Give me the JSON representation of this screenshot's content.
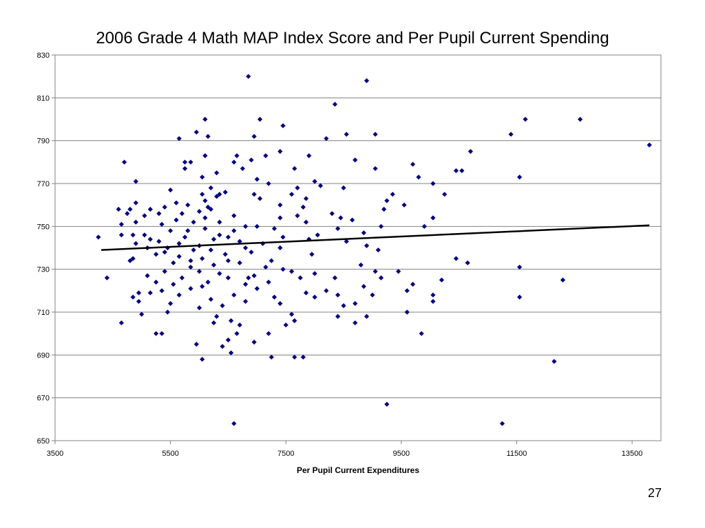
{
  "page": {
    "number": "27"
  },
  "chart_data": {
    "type": "scatter",
    "title": "2006 Grade 4 Math MAP Index Score and Per Pupil Current Spending",
    "xlabel": "Per Pupil Current Expenditures",
    "ylabel": "",
    "xlim": [
      3500,
      14000
    ],
    "ylim": [
      650,
      830
    ],
    "xticks": [
      3500,
      5500,
      7500,
      9500,
      11500,
      13500
    ],
    "yticks": [
      650,
      670,
      690,
      710,
      730,
      750,
      770,
      790,
      810,
      830
    ],
    "grid": "horizontal",
    "legend": "none",
    "colors": {
      "points": "#00007f",
      "trendline": "#000000",
      "gridline": "#808080",
      "axis": "#808080"
    },
    "series": [
      {
        "marker": "diamond",
        "points": [
          [
            6850,
            820
          ],
          [
            8900,
            818
          ],
          [
            8350,
            807
          ],
          [
            6100,
            800
          ],
          [
            7050,
            800
          ],
          [
            11650,
            800
          ],
          [
            12600,
            800
          ],
          [
            7450,
            797
          ],
          [
            5950,
            794
          ],
          [
            9050,
            793
          ],
          [
            11400,
            793
          ],
          [
            8550,
            793
          ],
          [
            6150,
            792
          ],
          [
            6950,
            792
          ],
          [
            8200,
            791
          ],
          [
            5650,
            791
          ],
          [
            13800,
            788
          ],
          [
            10700,
            785
          ],
          [
            7400,
            785
          ],
          [
            7900,
            783
          ],
          [
            6650,
            783
          ],
          [
            7150,
            783
          ],
          [
            6100,
            783
          ],
          [
            8700,
            781
          ],
          [
            6900,
            781
          ],
          [
            4700,
            780
          ],
          [
            5850,
            780
          ],
          [
            5750,
            780
          ],
          [
            6600,
            780
          ],
          [
            9700,
            779
          ],
          [
            9050,
            777
          ],
          [
            10450,
            776
          ],
          [
            10550,
            776
          ],
          [
            7650,
            777
          ],
          [
            5750,
            777
          ],
          [
            6750,
            777
          ],
          [
            6300,
            775
          ],
          [
            11550,
            773
          ],
          [
            9800,
            773
          ],
          [
            6050,
            773
          ],
          [
            7000,
            772
          ],
          [
            4900,
            771
          ],
          [
            8000,
            771
          ],
          [
            7700,
            768
          ],
          [
            8500,
            768
          ],
          [
            10050,
            770
          ],
          [
            7200,
            770
          ],
          [
            8100,
            769
          ],
          [
            6200,
            768
          ],
          [
            9350,
            765
          ],
          [
            10250,
            765
          ],
          [
            7600,
            765
          ],
          [
            6450,
            766
          ],
          [
            6350,
            765
          ],
          [
            6050,
            765
          ],
          [
            5500,
            767
          ],
          [
            6950,
            765
          ],
          [
            6300,
            764
          ],
          [
            7050,
            763
          ],
          [
            7850,
            763
          ],
          [
            6100,
            762
          ],
          [
            9250,
            762
          ],
          [
            5600,
            761
          ],
          [
            5800,
            760
          ],
          [
            4900,
            761
          ],
          [
            9550,
            760
          ],
          [
            6150,
            759
          ],
          [
            7400,
            760
          ],
          [
            7800,
            759
          ],
          [
            5400,
            759
          ],
          [
            4600,
            758
          ],
          [
            6200,
            758
          ],
          [
            4800,
            758
          ],
          [
            5150,
            758
          ],
          [
            9200,
            758
          ],
          [
            6000,
            757
          ],
          [
            5700,
            756
          ],
          [
            5300,
            756
          ],
          [
            8300,
            756
          ],
          [
            4750,
            756
          ],
          [
            7700,
            755
          ],
          [
            5050,
            755
          ],
          [
            8450,
            754
          ],
          [
            6600,
            755
          ],
          [
            6100,
            754
          ],
          [
            7400,
            754
          ],
          [
            5600,
            753
          ],
          [
            10050,
            754
          ],
          [
            8650,
            753
          ],
          [
            4900,
            752
          ],
          [
            5900,
            752
          ],
          [
            6350,
            752
          ],
          [
            7850,
            752
          ],
          [
            5350,
            751
          ],
          [
            4650,
            751
          ],
          [
            9150,
            750
          ],
          [
            6800,
            750
          ],
          [
            7000,
            750
          ],
          [
            9900,
            750
          ],
          [
            8400,
            749
          ],
          [
            6100,
            749
          ],
          [
            7300,
            749
          ],
          [
            5800,
            748
          ],
          [
            5500,
            748
          ],
          [
            6600,
            748
          ],
          [
            8850,
            747
          ],
          [
            4850,
            746
          ],
          [
            5050,
            746
          ],
          [
            6350,
            746
          ],
          [
            8050,
            746
          ],
          [
            4650,
            746
          ],
          [
            7450,
            745
          ],
          [
            5750,
            745
          ],
          [
            6500,
            745
          ],
          [
            4250,
            745
          ],
          [
            7900,
            744
          ],
          [
            5150,
            744
          ],
          [
            6250,
            744
          ],
          [
            8550,
            743
          ],
          [
            5300,
            743
          ],
          [
            6700,
            743
          ],
          [
            5650,
            742
          ],
          [
            4900,
            742
          ],
          [
            7100,
            742
          ],
          [
            6000,
            741
          ],
          [
            8900,
            741
          ],
          [
            5450,
            740
          ],
          [
            5100,
            740
          ],
          [
            6800,
            740
          ],
          [
            7400,
            740
          ],
          [
            5900,
            739
          ],
          [
            6200,
            739
          ],
          [
            9100,
            739
          ],
          [
            5400,
            738
          ],
          [
            6900,
            738
          ],
          [
            5250,
            737
          ],
          [
            6450,
            737
          ],
          [
            7950,
            737
          ],
          [
            5650,
            736
          ],
          [
            4850,
            735
          ],
          [
            6050,
            735
          ],
          [
            10450,
            735
          ],
          [
            4800,
            734
          ],
          [
            5850,
            734
          ],
          [
            6500,
            734
          ],
          [
            7250,
            734
          ],
          [
            10650,
            733
          ],
          [
            5550,
            733
          ],
          [
            6700,
            733
          ],
          [
            8800,
            732
          ],
          [
            6250,
            732
          ],
          [
            11550,
            731
          ],
          [
            5850,
            731
          ],
          [
            7150,
            731
          ],
          [
            7450,
            730
          ],
          [
            5400,
            729
          ],
          [
            9050,
            729
          ],
          [
            9450,
            729
          ],
          [
            6000,
            729
          ],
          [
            7600,
            729
          ],
          [
            6350,
            728
          ],
          [
            8000,
            728
          ],
          [
            5100,
            727
          ],
          [
            6950,
            727
          ],
          [
            6500,
            726
          ],
          [
            4400,
            726
          ],
          [
            5700,
            726
          ],
          [
            7750,
            726
          ],
          [
            6850,
            726
          ],
          [
            8350,
            726
          ],
          [
            9150,
            726
          ],
          [
            12300,
            725
          ],
          [
            10200,
            725
          ],
          [
            6150,
            724
          ],
          [
            5250,
            724
          ],
          [
            7200,
            724
          ],
          [
            6800,
            723
          ],
          [
            5550,
            723
          ],
          [
            8850,
            722
          ],
          [
            9700,
            723
          ],
          [
            6050,
            722
          ],
          [
            5850,
            721
          ],
          [
            7000,
            721
          ],
          [
            8200,
            720
          ],
          [
            5350,
            720
          ],
          [
            9600,
            720
          ],
          [
            4950,
            719
          ],
          [
            5150,
            719
          ],
          [
            8400,
            718
          ],
          [
            7850,
            719
          ],
          [
            6600,
            718
          ],
          [
            5650,
            718
          ],
          [
            9000,
            718
          ],
          [
            4850,
            717
          ],
          [
            10050,
            718
          ],
          [
            7300,
            717
          ],
          [
            11550,
            717
          ],
          [
            6200,
            716
          ],
          [
            4950,
            715
          ],
          [
            6800,
            715
          ],
          [
            8000,
            717
          ],
          [
            10050,
            715
          ],
          [
            7400,
            714
          ],
          [
            5500,
            714
          ],
          [
            8700,
            714
          ],
          [
            6400,
            713
          ],
          [
            8500,
            713
          ],
          [
            6000,
            712
          ],
          [
            9600,
            710
          ],
          [
            5000,
            709
          ],
          [
            7600,
            709
          ],
          [
            5450,
            710
          ],
          [
            6300,
            708
          ],
          [
            8400,
            708
          ],
          [
            8900,
            708
          ],
          [
            7650,
            706
          ],
          [
            6550,
            706
          ],
          [
            8700,
            705
          ],
          [
            6250,
            705
          ],
          [
            4650,
            705
          ],
          [
            6700,
            704
          ],
          [
            7500,
            704
          ],
          [
            9850,
            700
          ],
          [
            5350,
            700
          ],
          [
            5250,
            700
          ],
          [
            7200,
            700
          ],
          [
            6650,
            700
          ],
          [
            6500,
            697
          ],
          [
            6950,
            696
          ],
          [
            5950,
            695
          ],
          [
            6400,
            694
          ],
          [
            7250,
            689
          ],
          [
            7650,
            689
          ],
          [
            7800,
            689
          ],
          [
            6050,
            688
          ],
          [
            12150,
            687
          ],
          [
            6550,
            691
          ],
          [
            9250,
            667
          ],
          [
            6600,
            658
          ],
          [
            11250,
            658
          ]
        ]
      }
    ],
    "trendline": {
      "x": [
        4300,
        13800
      ],
      "y": [
        739,
        750.5
      ]
    }
  }
}
